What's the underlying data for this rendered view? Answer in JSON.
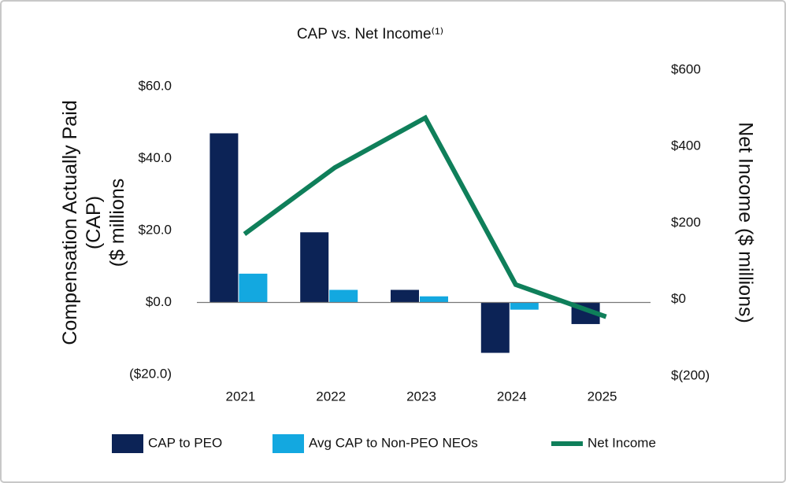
{
  "chart_data": {
    "type": "bar-line",
    "title": "CAP vs. Net Income⁽¹⁾",
    "ylabel": [
      "Compensation Actually Paid",
      "(CAP)",
      "($ millions"
    ],
    "y2label": "Net Income ($ millions)",
    "categories": [
      "2021",
      "2022",
      "2023",
      "2024",
      "2025"
    ],
    "series": [
      {
        "name": "CAP to PEO",
        "type": "bar",
        "color": "#0c2356",
        "values": [
          47,
          19.5,
          3.5,
          -14,
          -6
        ]
      },
      {
        "name": "Avg CAP to Non-PEO NEOs",
        "type": "bar",
        "color": "#13a8e0",
        "values": [
          8,
          3.5,
          1.7,
          -2,
          0
        ]
      },
      {
        "name": "Net Income",
        "type": "line",
        "axis": "y2",
        "color": "#0f7f5a",
        "values": [
          171,
          345,
          475,
          39,
          -45
        ]
      }
    ],
    "ylim": [
      -20,
      60
    ],
    "yticks": [
      {
        "value": 60,
        "label": "$60.0"
      },
      {
        "value": 40,
        "label": "$40.0"
      },
      {
        "value": 20,
        "label": "$20.0"
      },
      {
        "value": 0,
        "label": "$0.0"
      },
      {
        "value": -20,
        "label": "($20.0)"
      }
    ],
    "y2lim": [
      -200,
      600
    ],
    "y2ticks": [
      {
        "value": 600,
        "label": "$600"
      },
      {
        "value": 400,
        "label": "$400"
      },
      {
        "value": 200,
        "label": "$200"
      },
      {
        "value": 0,
        "label": "$0"
      },
      {
        "value": -200,
        "label": "$(200)"
      }
    ],
    "grid": false
  }
}
